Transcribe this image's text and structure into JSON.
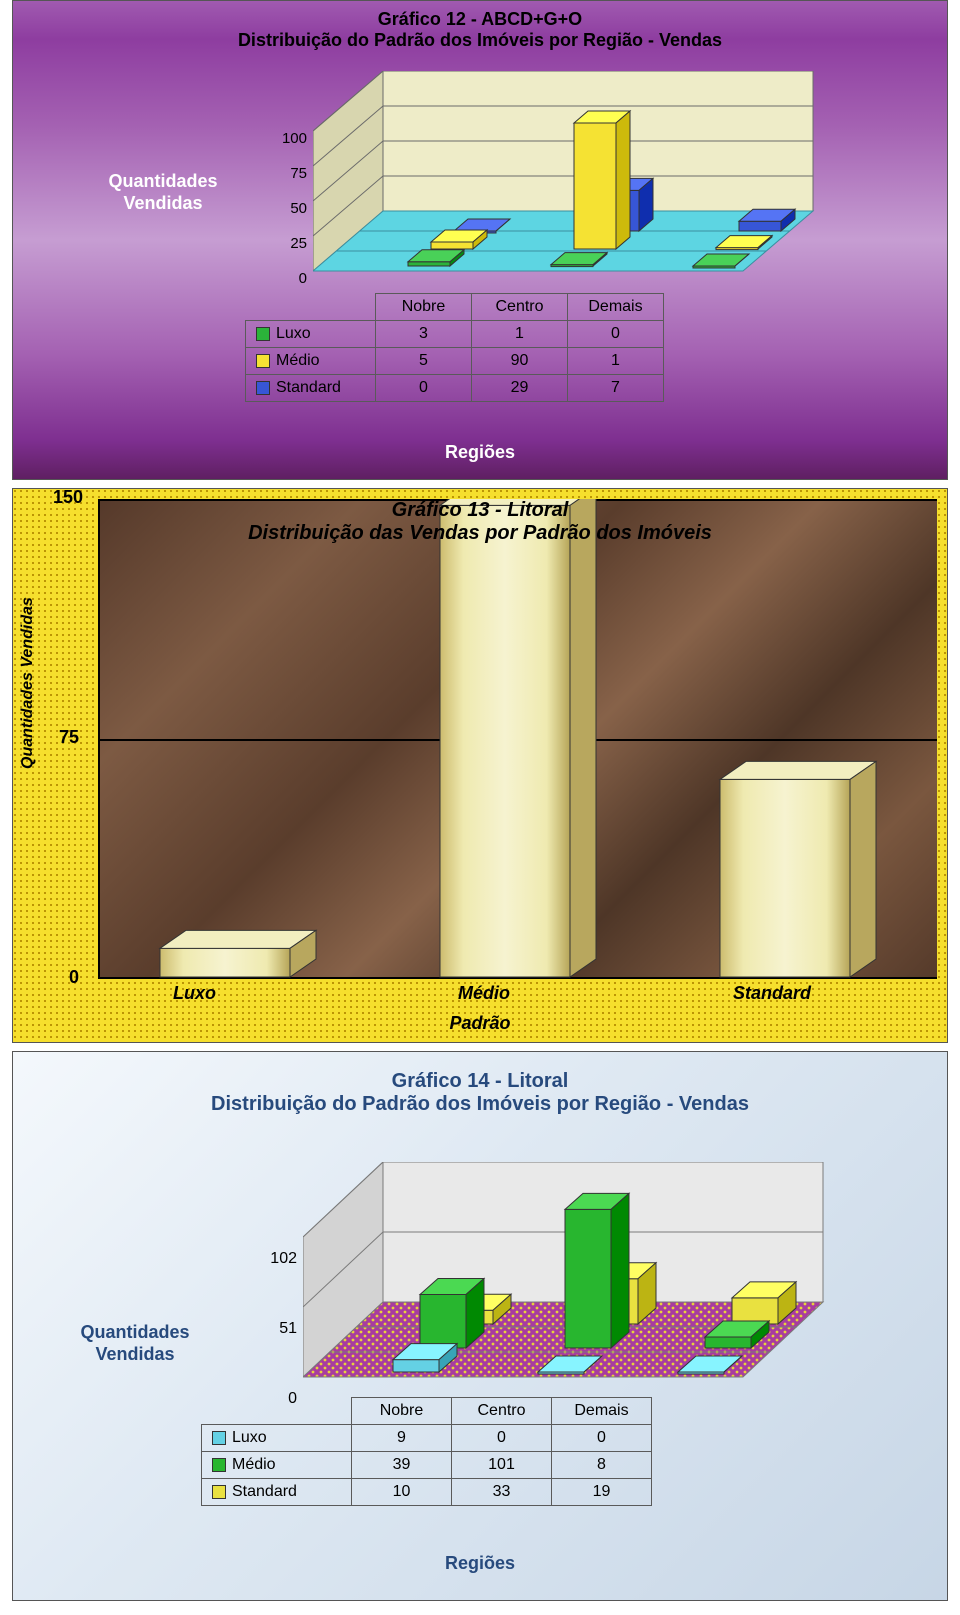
{
  "chart12": {
    "type": "3d-bar",
    "title_line1": "Gráfico 12 - ABCD+G+O",
    "title_line2": "Distribuição do Padrão dos Imóveis por Região - Vendas",
    "title_fontsize": 18,
    "ylabel_line1": "Quantidades",
    "ylabel_line2": "Vendidas",
    "xlabel": "Regiões",
    "xticks": {
      "t0": "Nobre",
      "t1": "Centro",
      "t2": "Demais"
    },
    "yticks": {
      "t0": "0",
      "t1": "25",
      "t2": "50",
      "t3": "75",
      "t4": "100"
    },
    "ylim": [
      0,
      100
    ],
    "series": {
      "s0": {
        "name": "Luxo",
        "color": "#2bb33a",
        "vals": {
          "v0": "3",
          "v1": "1",
          "v2": "0"
        }
      },
      "s1": {
        "name": "Médio",
        "color": "#f5e233",
        "vals": {
          "v0": "5",
          "v1": "90",
          "v2": "1"
        }
      },
      "s2": {
        "name": "Standard",
        "color": "#3756d6",
        "vals": {
          "v0": "0",
          "v1": "29",
          "v2": "7"
        }
      }
    },
    "floor_color": "#5dd5e2",
    "wall_color": "#eeecc8",
    "grid_color": "#6a6a6a",
    "bg_gradient": [
      "#a05ab0",
      "#c69dd2",
      "#5f1f62"
    ]
  },
  "chart13": {
    "type": "3d-column",
    "title_line1": "Gráfico 13 - Litoral",
    "title_line2": "Distribuição das Vendas por Padrão dos Imóveis",
    "title_fontsize": 20,
    "ylabel": "Quantidades Vendidas",
    "xlabel": "Padrão",
    "xticks": {
      "t0": "Luxo",
      "t1": "Médio",
      "t2": "Standard"
    },
    "yticks": {
      "t0": "0",
      "t1": "75",
      "t2": "150"
    },
    "ylim": [
      0,
      150
    ],
    "values": {
      "v0": 9,
      "v1": 148,
      "v2": 62
    },
    "bar_color_top": "#efeab0",
    "bar_color_bottom": "#cdbc6e",
    "bg_dot": "#b78f00",
    "bg_field": "#f6df2d",
    "marble_color": "#6e4f3a",
    "grid_color": "#000000"
  },
  "chart14": {
    "type": "3d-bar",
    "title_line1": "Gráfico 14 - Litoral",
    "title_line2": "Distribuição do Padrão dos Imóveis por Região - Vendas",
    "title_fontsize": 20,
    "ylabel_line1": "Quantidades",
    "ylabel_line2": "Vendidas",
    "xlabel": "Regiões",
    "xticks": {
      "t0": "Nobre",
      "t1": "Centro",
      "t2": "Demais"
    },
    "yticks": {
      "t0": "0",
      "t1": "51",
      "t2": "102"
    },
    "ylim": [
      0,
      102
    ],
    "series": {
      "s0": {
        "name": "Luxo",
        "color": "#64d1e4",
        "vals": {
          "v0": "9",
          "v1": "0",
          "v2": "0"
        }
      },
      "s1": {
        "name": "Médio",
        "color": "#28b62f",
        "vals": {
          "v0": "39",
          "v1": "101",
          "v2": "8"
        }
      },
      "s2": {
        "name": "Standard",
        "color": "#e9e140",
        "vals": {
          "v0": "10",
          "v1": "33",
          "v2": "19"
        }
      }
    },
    "floor_color": "#a83c9f",
    "floor_dot": "#e8d33a",
    "wall_color": "#e9e9e9",
    "grid_color": "#7a7a7a",
    "bg_gradient": [
      "#f4f8fc",
      "#c7d6e6"
    ]
  }
}
